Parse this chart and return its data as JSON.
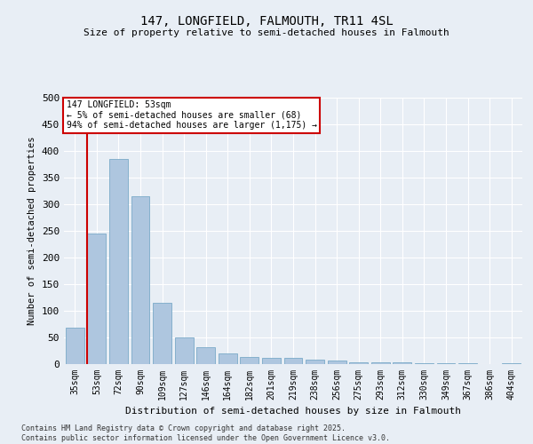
{
  "title_line1": "147, LONGFIELD, FALMOUTH, TR11 4SL",
  "title_line2": "Size of property relative to semi-detached houses in Falmouth",
  "xlabel": "Distribution of semi-detached houses by size in Falmouth",
  "ylabel": "Number of semi-detached properties",
  "annotation_title": "147 LONGFIELD: 53sqm",
  "annotation_line2": "← 5% of semi-detached houses are smaller (68)",
  "annotation_line3": "94% of semi-detached houses are larger (1,175) →",
  "footer_line1": "Contains HM Land Registry data © Crown copyright and database right 2025.",
  "footer_line2": "Contains public sector information licensed under the Open Government Licence v3.0.",
  "bar_color": "#aec6df",
  "bar_edge_color": "#7aaac8",
  "marker_line_color": "#cc0000",
  "background_color": "#e8eef5",
  "annotation_box_color": "#ffffff",
  "annotation_box_edge": "#cc0000",
  "grid_color": "#ffffff",
  "categories": [
    "35sqm",
    "53sqm",
    "72sqm",
    "90sqm",
    "109sqm",
    "127sqm",
    "146sqm",
    "164sqm",
    "182sqm",
    "201sqm",
    "219sqm",
    "238sqm",
    "256sqm",
    "275sqm",
    "293sqm",
    "312sqm",
    "330sqm",
    "349sqm",
    "367sqm",
    "386sqm",
    "404sqm"
  ],
  "values": [
    68,
    245,
    385,
    315,
    115,
    50,
    32,
    20,
    14,
    12,
    11,
    8,
    6,
    4,
    3,
    3,
    2,
    1,
    1,
    0,
    1
  ],
  "marker_bar_index": 1,
  "ylim": [
    0,
    500
  ],
  "yticks": [
    0,
    50,
    100,
    150,
    200,
    250,
    300,
    350,
    400,
    450,
    500
  ]
}
